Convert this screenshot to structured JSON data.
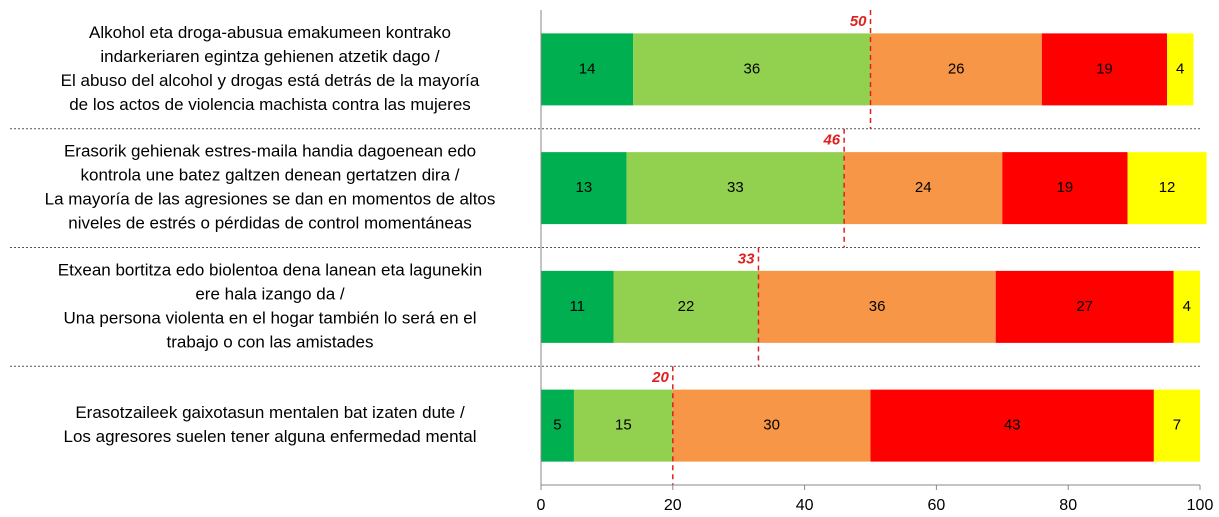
{
  "chart_data": {
    "type": "stacked-bar-horizontal",
    "categories": [
      [
        "Alkohol eta droga-abusua emakumeen kontrako",
        "indarkeriaren egintza gehienen atzetik dago /",
        "El abuso del alcohol y drogas está detrás de la mayoría",
        "de los actos de violencia machista contra las mujeres"
      ],
      [
        "Erasorik gehienak estres-maila handia dagoenean edo",
        "kontrola une batez galtzen denean gertatzen dira /",
        "La mayoría de las agresiones se dan en momentos de altos",
        "niveles de estrés o pérdidas de control momentáneas"
      ],
      [
        "Etxean bortitza edo biolentoa dena lanean eta lagunekin",
        "ere hala izango da /",
        "Una persona violenta en el hogar también lo será en el",
        "trabajo o con las amistades"
      ],
      [
        "Erasotzaileek gaixotasun mentalen bat izaten dute /",
        "Los agresores suelen tener alguna enfermedad mental"
      ]
    ],
    "series": [
      {
        "color": "#00b050",
        "values": [
          14,
          13,
          11,
          5
        ]
      },
      {
        "color": "#92d050",
        "values": [
          36,
          33,
          22,
          15
        ]
      },
      {
        "color": "#f79646",
        "values": [
          26,
          24,
          36,
          30
        ]
      },
      {
        "color": "#ff0000",
        "values": [
          19,
          19,
          27,
          43
        ]
      },
      {
        "color": "#ffff00",
        "values": [
          4,
          12,
          4,
          7
        ]
      }
    ],
    "markers": {
      "color": "#e02020",
      "values": [
        50,
        46,
        33,
        20
      ]
    },
    "xlim": [
      0,
      100
    ],
    "xticks": [
      0,
      20,
      40,
      60,
      80,
      100
    ]
  }
}
